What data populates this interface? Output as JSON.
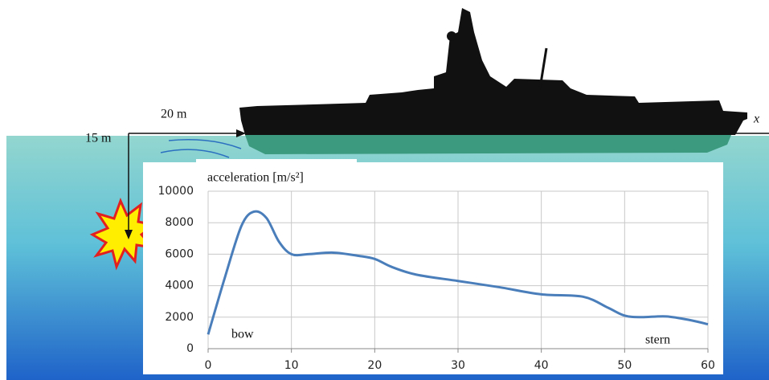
{
  "chart_data": {
    "type": "line",
    "ylabel": "acceleration [m/s²]",
    "annotations": [
      "bow",
      "stern"
    ],
    "scene_labels": [
      "20 m",
      "15 m",
      "x"
    ],
    "x": [
      0,
      2,
      4,
      5.5,
      7,
      8.5,
      10,
      12,
      15,
      18,
      20,
      22,
      25,
      30,
      35,
      40,
      45,
      48,
      50,
      52,
      55,
      58,
      60
    ],
    "values": [
      900,
      4500,
      7800,
      8700,
      8300,
      6800,
      6000,
      6000,
      6100,
      5900,
      5700,
      5200,
      4700,
      4300,
      3900,
      3450,
      3300,
      2600,
      2100,
      2000,
      2050,
      1800,
      1550
    ],
    "color": "#4a7ebb",
    "xlim": [
      0,
      60
    ],
    "xticks": [
      0,
      10,
      20,
      30,
      40,
      50,
      60
    ],
    "ylim": [
      0,
      10000
    ],
    "yticks": [
      0,
      2000,
      4000,
      6000,
      8000,
      10000
    ],
    "grid": true
  }
}
